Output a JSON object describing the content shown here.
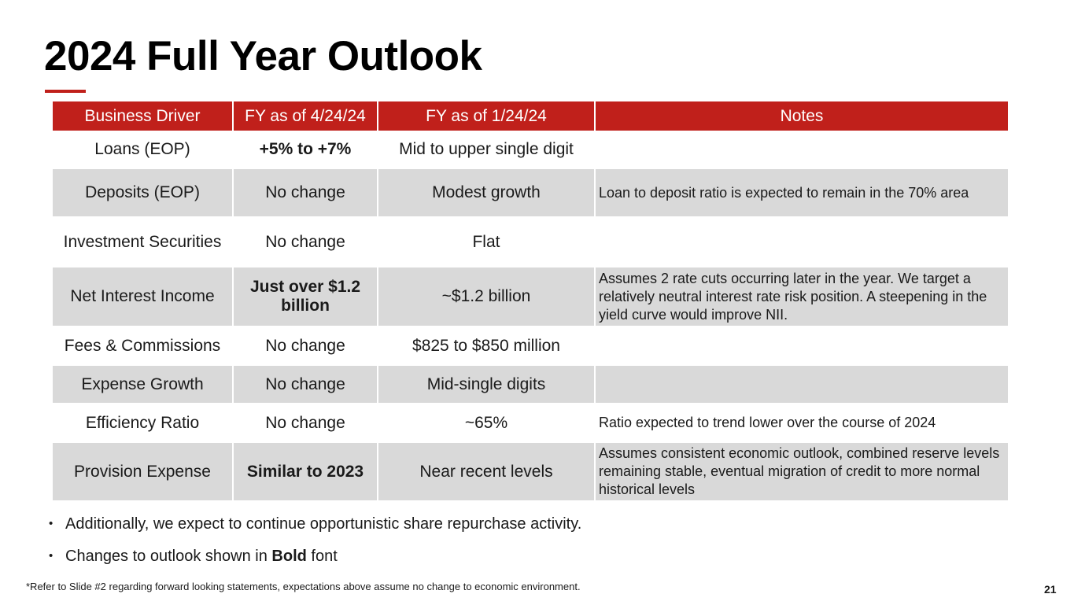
{
  "title": "2024 Full Year Outlook",
  "colors": {
    "accent": "#c0201b",
    "shade": "#d9d9d9"
  },
  "table": {
    "headers": [
      "Business Driver",
      "FY as of 4/24/24",
      "FY as of 1/24/24",
      "Notes"
    ],
    "rows": [
      {
        "driver": "Loans (EOP)",
        "fy_apr": "+5% to +7%",
        "fy_jan": "Mid to upper single digit",
        "notes": ""
      },
      {
        "driver": "Deposits (EOP)",
        "fy_apr": "No change",
        "fy_jan": "Modest growth",
        "notes": "Loan to deposit ratio is expected to remain in the 70% area"
      },
      {
        "driver": "Investment Securities",
        "fy_apr": "No change",
        "fy_jan": "Flat",
        "notes": ""
      },
      {
        "driver": "Net Interest Income",
        "fy_apr": "Just over $1.2 billion",
        "fy_jan": "~$1.2 billion",
        "notes": "Assumes 2 rate cuts occurring later in the year. We target a relatively neutral interest rate risk position. A steepening in the yield curve would improve NII."
      },
      {
        "driver": "Fees & Commissions",
        "fy_apr": "No change",
        "fy_jan": "$825 to $850 million",
        "notes": ""
      },
      {
        "driver": "Expense Growth",
        "fy_apr": "No change",
        "fy_jan": "Mid-single digits",
        "notes": ""
      },
      {
        "driver": "Efficiency Ratio",
        "fy_apr": "No change",
        "fy_jan": "~65%",
        "notes": "Ratio expected to trend lower over the course of 2024"
      },
      {
        "driver": "Provision Expense",
        "fy_apr": "Similar to 2023",
        "fy_jan": "Near recent levels",
        "notes": "Assumes consistent economic outlook, combined reserve levels remaining stable, eventual migration of credit to more normal historical levels"
      }
    ]
  },
  "bullets": {
    "first": "Additionally, we expect to continue opportunistic share repurchase activity.",
    "second_prefix": "Changes to outlook shown in",
    "second_bold": "Bold",
    "second_suffix": "font"
  },
  "footnote": "*Refer to Slide #2 regarding forward looking statements, expectations above assume no change to economic environment.",
  "page_number": "21"
}
